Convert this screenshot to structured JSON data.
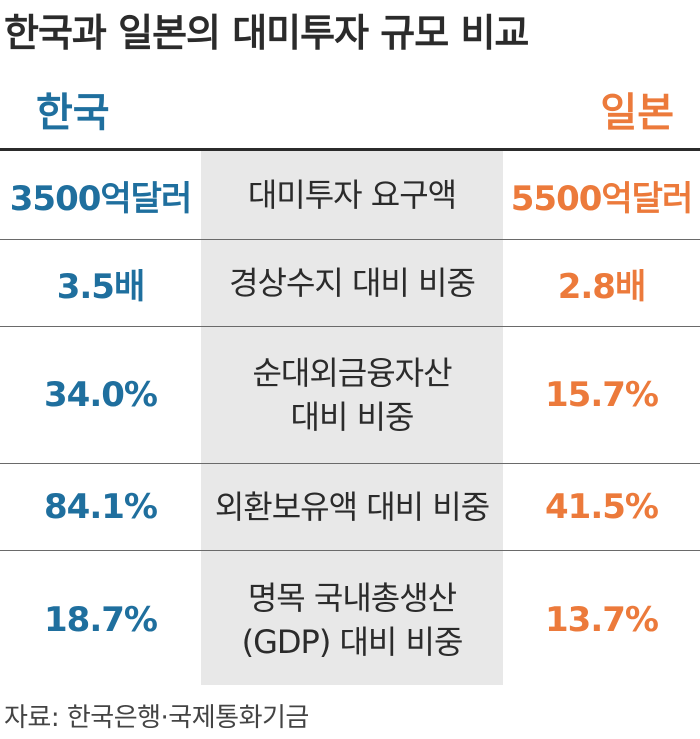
{
  "title": "한국과 일본의 대미투자 규모 비교",
  "headers": {
    "korea": "한국",
    "japan": "일본"
  },
  "colors": {
    "korea": "#1f6f9e",
    "japan": "#ec7a3b",
    "middle_bg": "#e8e8e8"
  },
  "chart_data": {
    "type": "table",
    "title": "한국과 일본의 대미투자 규모 비교",
    "columns": [
      "한국",
      "일본"
    ],
    "rows": [
      {
        "label_lines": [
          "대미투자 요구액"
        ],
        "korea": "3500억달러",
        "japan": "5500억달러"
      },
      {
        "label_lines": [
          "경상수지 대비 비중"
        ],
        "korea": "3.5배",
        "japan": "2.8배"
      },
      {
        "label_lines": [
          "순대외금융자산",
          "대비 비중"
        ],
        "korea": "34.0%",
        "japan": "15.7%"
      },
      {
        "label_lines": [
          "외환보유액 대비 비중"
        ],
        "korea": "84.1%",
        "japan": "41.5%"
      },
      {
        "label_lines": [
          "명목 국내총생산",
          "(GDP) 대비 비중"
        ],
        "korea": "18.7%",
        "japan": "13.7%"
      }
    ]
  },
  "source": "자료: 한국은행·국제통화기금"
}
